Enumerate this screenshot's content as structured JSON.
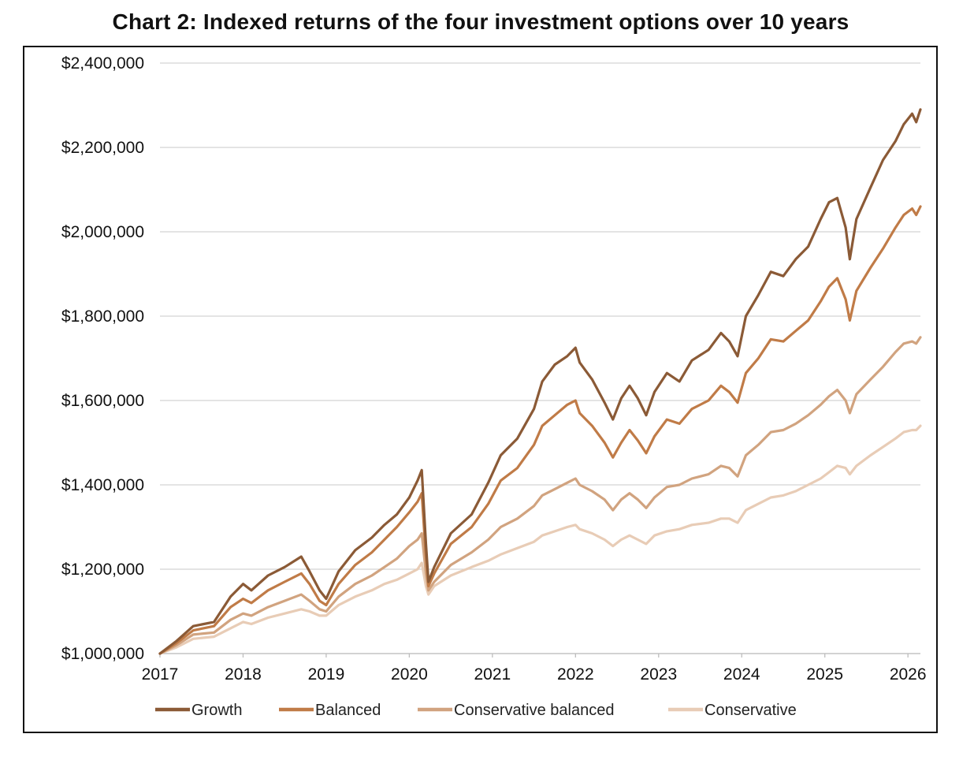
{
  "chart_data": {
    "type": "line",
    "title": "Chart 2: Indexed returns of the four investment options over 10 years",
    "xlabel": "",
    "ylabel": "",
    "xlim": [
      2017.0,
      2026.15
    ],
    "ylim": [
      1000000,
      2400000
    ],
    "x_ticks": [
      2017,
      2018,
      2019,
      2020,
      2021,
      2022,
      2023,
      2024,
      2025,
      2026
    ],
    "x_tick_labels": [
      "2017",
      "2018",
      "2019",
      "2020",
      "2021",
      "2022",
      "2023",
      "2024",
      "2025",
      "2026"
    ],
    "y_ticks": [
      1000000,
      1200000,
      1400000,
      1600000,
      1800000,
      2000000,
      2200000,
      2400000
    ],
    "y_tick_labels": [
      "$1,000,000",
      "$1,200,000",
      "$1,400,000",
      "$1,600,000",
      "$1,800,000",
      "$2,000,000",
      "$2,200,000",
      "$2,400,000"
    ],
    "grid": "horizontal",
    "legend_position": "bottom",
    "series": [
      {
        "name": "Growth",
        "color": "#8B5A36",
        "points": [
          [
            2017.0,
            1000000
          ],
          [
            2017.2,
            1030000
          ],
          [
            2017.4,
            1065000
          ],
          [
            2017.65,
            1075000
          ],
          [
            2017.85,
            1135000
          ],
          [
            2018.0,
            1165000
          ],
          [
            2018.1,
            1150000
          ],
          [
            2018.3,
            1185000
          ],
          [
            2018.5,
            1205000
          ],
          [
            2018.7,
            1230000
          ],
          [
            2018.8,
            1195000
          ],
          [
            2018.92,
            1150000
          ],
          [
            2019.0,
            1130000
          ],
          [
            2019.15,
            1195000
          ],
          [
            2019.35,
            1245000
          ],
          [
            2019.55,
            1275000
          ],
          [
            2019.7,
            1305000
          ],
          [
            2019.85,
            1330000
          ],
          [
            2020.0,
            1370000
          ],
          [
            2020.1,
            1410000
          ],
          [
            2020.15,
            1435000
          ],
          [
            2020.2,
            1260000
          ],
          [
            2020.23,
            1170000
          ],
          [
            2020.3,
            1205000
          ],
          [
            2020.5,
            1285000
          ],
          [
            2020.75,
            1330000
          ],
          [
            2020.95,
            1405000
          ],
          [
            2021.1,
            1470000
          ],
          [
            2021.3,
            1510000
          ],
          [
            2021.5,
            1580000
          ],
          [
            2021.6,
            1645000
          ],
          [
            2021.75,
            1685000
          ],
          [
            2021.9,
            1705000
          ],
          [
            2022.0,
            1725000
          ],
          [
            2022.05,
            1690000
          ],
          [
            2022.2,
            1650000
          ],
          [
            2022.35,
            1595000
          ],
          [
            2022.45,
            1555000
          ],
          [
            2022.55,
            1605000
          ],
          [
            2022.65,
            1635000
          ],
          [
            2022.75,
            1605000
          ],
          [
            2022.85,
            1565000
          ],
          [
            2022.95,
            1620000
          ],
          [
            2023.1,
            1665000
          ],
          [
            2023.25,
            1645000
          ],
          [
            2023.4,
            1695000
          ],
          [
            2023.6,
            1720000
          ],
          [
            2023.75,
            1760000
          ],
          [
            2023.85,
            1740000
          ],
          [
            2023.95,
            1705000
          ],
          [
            2024.05,
            1800000
          ],
          [
            2024.2,
            1850000
          ],
          [
            2024.35,
            1905000
          ],
          [
            2024.5,
            1895000
          ],
          [
            2024.65,
            1935000
          ],
          [
            2024.8,
            1965000
          ],
          [
            2024.95,
            2030000
          ],
          [
            2025.05,
            2070000
          ],
          [
            2025.15,
            2080000
          ],
          [
            2025.25,
            2010000
          ],
          [
            2025.3,
            1935000
          ],
          [
            2025.38,
            2030000
          ],
          [
            2025.55,
            2105000
          ],
          [
            2025.7,
            2170000
          ],
          [
            2025.85,
            2215000
          ],
          [
            2025.95,
            2255000
          ],
          [
            2026.05,
            2280000
          ],
          [
            2026.1,
            2260000
          ],
          [
            2026.15,
            2290000
          ]
        ]
      },
      {
        "name": "Balanced",
        "color": "#C07B47",
        "points": [
          [
            2017.0,
            1000000
          ],
          [
            2017.2,
            1025000
          ],
          [
            2017.4,
            1055000
          ],
          [
            2017.65,
            1065000
          ],
          [
            2017.85,
            1110000
          ],
          [
            2018.0,
            1130000
          ],
          [
            2018.1,
            1120000
          ],
          [
            2018.3,
            1150000
          ],
          [
            2018.5,
            1170000
          ],
          [
            2018.7,
            1190000
          ],
          [
            2018.8,
            1165000
          ],
          [
            2018.92,
            1125000
          ],
          [
            2019.0,
            1115000
          ],
          [
            2019.15,
            1165000
          ],
          [
            2019.35,
            1210000
          ],
          [
            2019.55,
            1240000
          ],
          [
            2019.7,
            1270000
          ],
          [
            2019.85,
            1300000
          ],
          [
            2020.0,
            1335000
          ],
          [
            2020.1,
            1360000
          ],
          [
            2020.15,
            1380000
          ],
          [
            2020.2,
            1230000
          ],
          [
            2020.23,
            1160000
          ],
          [
            2020.3,
            1190000
          ],
          [
            2020.5,
            1260000
          ],
          [
            2020.75,
            1300000
          ],
          [
            2020.95,
            1355000
          ],
          [
            2021.1,
            1410000
          ],
          [
            2021.3,
            1440000
          ],
          [
            2021.5,
            1495000
          ],
          [
            2021.6,
            1540000
          ],
          [
            2021.75,
            1565000
          ],
          [
            2021.9,
            1590000
          ],
          [
            2022.0,
            1600000
          ],
          [
            2022.05,
            1570000
          ],
          [
            2022.2,
            1540000
          ],
          [
            2022.35,
            1500000
          ],
          [
            2022.45,
            1465000
          ],
          [
            2022.55,
            1500000
          ],
          [
            2022.65,
            1530000
          ],
          [
            2022.75,
            1505000
          ],
          [
            2022.85,
            1475000
          ],
          [
            2022.95,
            1515000
          ],
          [
            2023.1,
            1555000
          ],
          [
            2023.25,
            1545000
          ],
          [
            2023.4,
            1580000
          ],
          [
            2023.6,
            1600000
          ],
          [
            2023.75,
            1635000
          ],
          [
            2023.85,
            1620000
          ],
          [
            2023.95,
            1595000
          ],
          [
            2024.05,
            1665000
          ],
          [
            2024.2,
            1700000
          ],
          [
            2024.35,
            1745000
          ],
          [
            2024.5,
            1740000
          ],
          [
            2024.65,
            1765000
          ],
          [
            2024.8,
            1790000
          ],
          [
            2024.95,
            1835000
          ],
          [
            2025.05,
            1870000
          ],
          [
            2025.15,
            1890000
          ],
          [
            2025.25,
            1840000
          ],
          [
            2025.3,
            1790000
          ],
          [
            2025.38,
            1860000
          ],
          [
            2025.55,
            1915000
          ],
          [
            2025.7,
            1960000
          ],
          [
            2025.85,
            2010000
          ],
          [
            2025.95,
            2040000
          ],
          [
            2026.05,
            2055000
          ],
          [
            2026.1,
            2040000
          ],
          [
            2026.15,
            2060000
          ]
        ]
      },
      {
        "name": "Conservative balanced",
        "color": "#D1A37F",
        "points": [
          [
            2017.0,
            1000000
          ],
          [
            2017.2,
            1020000
          ],
          [
            2017.4,
            1045000
          ],
          [
            2017.65,
            1050000
          ],
          [
            2017.85,
            1080000
          ],
          [
            2018.0,
            1095000
          ],
          [
            2018.1,
            1090000
          ],
          [
            2018.3,
            1110000
          ],
          [
            2018.5,
            1125000
          ],
          [
            2018.7,
            1140000
          ],
          [
            2018.8,
            1125000
          ],
          [
            2018.92,
            1105000
          ],
          [
            2019.0,
            1100000
          ],
          [
            2019.15,
            1135000
          ],
          [
            2019.35,
            1165000
          ],
          [
            2019.55,
            1185000
          ],
          [
            2019.7,
            1205000
          ],
          [
            2019.85,
            1225000
          ],
          [
            2020.0,
            1255000
          ],
          [
            2020.1,
            1270000
          ],
          [
            2020.15,
            1285000
          ],
          [
            2020.2,
            1190000
          ],
          [
            2020.23,
            1150000
          ],
          [
            2020.3,
            1170000
          ],
          [
            2020.5,
            1210000
          ],
          [
            2020.75,
            1240000
          ],
          [
            2020.95,
            1270000
          ],
          [
            2021.1,
            1300000
          ],
          [
            2021.3,
            1320000
          ],
          [
            2021.5,
            1350000
          ],
          [
            2021.6,
            1375000
          ],
          [
            2021.75,
            1390000
          ],
          [
            2021.9,
            1405000
          ],
          [
            2022.0,
            1415000
          ],
          [
            2022.05,
            1400000
          ],
          [
            2022.2,
            1385000
          ],
          [
            2022.35,
            1365000
          ],
          [
            2022.45,
            1340000
          ],
          [
            2022.55,
            1365000
          ],
          [
            2022.65,
            1380000
          ],
          [
            2022.75,
            1365000
          ],
          [
            2022.85,
            1345000
          ],
          [
            2022.95,
            1370000
          ],
          [
            2023.1,
            1395000
          ],
          [
            2023.25,
            1400000
          ],
          [
            2023.4,
            1415000
          ],
          [
            2023.6,
            1425000
          ],
          [
            2023.75,
            1445000
          ],
          [
            2023.85,
            1440000
          ],
          [
            2023.95,
            1420000
          ],
          [
            2024.05,
            1470000
          ],
          [
            2024.2,
            1495000
          ],
          [
            2024.35,
            1525000
          ],
          [
            2024.5,
            1530000
          ],
          [
            2024.65,
            1545000
          ],
          [
            2024.8,
            1565000
          ],
          [
            2024.95,
            1590000
          ],
          [
            2025.05,
            1610000
          ],
          [
            2025.15,
            1625000
          ],
          [
            2025.25,
            1600000
          ],
          [
            2025.3,
            1570000
          ],
          [
            2025.38,
            1615000
          ],
          [
            2025.55,
            1650000
          ],
          [
            2025.7,
            1680000
          ],
          [
            2025.85,
            1715000
          ],
          [
            2025.95,
            1735000
          ],
          [
            2026.05,
            1740000
          ],
          [
            2026.1,
            1735000
          ],
          [
            2026.15,
            1750000
          ]
        ]
      },
      {
        "name": "Conservative",
        "color": "#E8CCB6",
        "points": [
          [
            2017.0,
            1000000
          ],
          [
            2017.2,
            1015000
          ],
          [
            2017.4,
            1035000
          ],
          [
            2017.65,
            1040000
          ],
          [
            2017.85,
            1060000
          ],
          [
            2018.0,
            1075000
          ],
          [
            2018.1,
            1070000
          ],
          [
            2018.3,
            1085000
          ],
          [
            2018.5,
            1095000
          ],
          [
            2018.7,
            1105000
          ],
          [
            2018.8,
            1100000
          ],
          [
            2018.92,
            1090000
          ],
          [
            2019.0,
            1090000
          ],
          [
            2019.15,
            1115000
          ],
          [
            2019.35,
            1135000
          ],
          [
            2019.55,
            1150000
          ],
          [
            2019.7,
            1165000
          ],
          [
            2019.85,
            1175000
          ],
          [
            2020.0,
            1190000
          ],
          [
            2020.1,
            1200000
          ],
          [
            2020.15,
            1215000
          ],
          [
            2020.2,
            1160000
          ],
          [
            2020.23,
            1140000
          ],
          [
            2020.3,
            1160000
          ],
          [
            2020.5,
            1185000
          ],
          [
            2020.75,
            1205000
          ],
          [
            2020.95,
            1220000
          ],
          [
            2021.1,
            1235000
          ],
          [
            2021.3,
            1250000
          ],
          [
            2021.5,
            1265000
          ],
          [
            2021.6,
            1280000
          ],
          [
            2021.75,
            1290000
          ],
          [
            2021.9,
            1300000
          ],
          [
            2022.0,
            1305000
          ],
          [
            2022.05,
            1295000
          ],
          [
            2022.2,
            1285000
          ],
          [
            2022.35,
            1270000
          ],
          [
            2022.45,
            1255000
          ],
          [
            2022.55,
            1270000
          ],
          [
            2022.65,
            1280000
          ],
          [
            2022.75,
            1270000
          ],
          [
            2022.85,
            1260000
          ],
          [
            2022.95,
            1280000
          ],
          [
            2023.1,
            1290000
          ],
          [
            2023.25,
            1295000
          ],
          [
            2023.4,
            1305000
          ],
          [
            2023.6,
            1310000
          ],
          [
            2023.75,
            1320000
          ],
          [
            2023.85,
            1320000
          ],
          [
            2023.95,
            1310000
          ],
          [
            2024.05,
            1340000
          ],
          [
            2024.2,
            1355000
          ],
          [
            2024.35,
            1370000
          ],
          [
            2024.5,
            1375000
          ],
          [
            2024.65,
            1385000
          ],
          [
            2024.8,
            1400000
          ],
          [
            2024.95,
            1415000
          ],
          [
            2025.05,
            1430000
          ],
          [
            2025.15,
            1445000
          ],
          [
            2025.25,
            1440000
          ],
          [
            2025.3,
            1425000
          ],
          [
            2025.38,
            1445000
          ],
          [
            2025.55,
            1470000
          ],
          [
            2025.7,
            1490000
          ],
          [
            2025.85,
            1510000
          ],
          [
            2025.95,
            1525000
          ],
          [
            2026.05,
            1530000
          ],
          [
            2026.1,
            1530000
          ],
          [
            2026.15,
            1540000
          ]
        ]
      }
    ]
  }
}
